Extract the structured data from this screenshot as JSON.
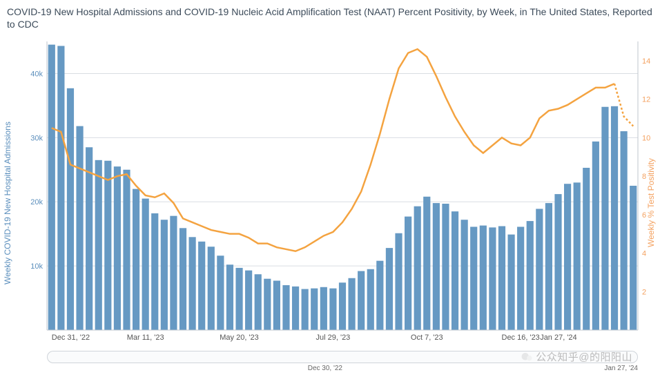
{
  "title": "COVID-19 New Hospital Admissions and COVID-19 Nucleic Acid Amplification Test (NAAT) Percent Positivity, by Week, in The United States, Reported to CDC",
  "chart": {
    "type": "bar+line",
    "background_color": "#ffffff",
    "grid_color": "#d9dde2",
    "bar_color": "#6699c3",
    "line_color": "#f4a340",
    "bar_width_ratio": 0.75,
    "line_width": 2.5,
    "y_left": {
      "label": "Weekly COVID-19 New Hospital Admissions",
      "label_color": "#5a8ebc",
      "label_fontsize": 12,
      "lim": [
        0,
        45000
      ],
      "ticks": [
        10000,
        20000,
        30000,
        40000
      ],
      "tick_labels": [
        "10k",
        "20k",
        "30k",
        "40k"
      ]
    },
    "y_right": {
      "label": "Weekly % Test Positivity",
      "label_color": "#f4a261",
      "label_fontsize": 12,
      "lim": [
        0,
        15
      ],
      "ticks": [
        2,
        4,
        6,
        8,
        10,
        12,
        14
      ],
      "tick_labels": [
        "2",
        "4",
        "6",
        "8",
        "10",
        "12",
        "14"
      ]
    },
    "x": {
      "ticks_idx": [
        0,
        10,
        20,
        30,
        40,
        50,
        56
      ],
      "tick_labels": [
        "Dec 31, '22",
        "Mar 11, '23",
        "May 20, '23",
        "Jul 29, '23",
        "Oct 7, '23",
        "Dec 16, '23",
        "Jan 27, '24"
      ]
    },
    "bars": [
      44500,
      44300,
      37700,
      31800,
      28500,
      26500,
      26400,
      25500,
      25000,
      22000,
      20500,
      18200,
      17200,
      17800,
      15900,
      14500,
      13800,
      13000,
      11600,
      10200,
      9700,
      9300,
      8700,
      8000,
      7700,
      7000,
      6800,
      6400,
      6500,
      6700,
      6500,
      7400,
      8100,
      9200,
      9500,
      10800,
      12800,
      15100,
      17700,
      19300,
      20800,
      19800,
      19700,
      18500,
      17200,
      16100,
      16300,
      16000,
      16200,
      14900,
      16100,
      17000,
      18900,
      19800,
      21200,
      22800,
      23000,
      25300,
      29400,
      34800,
      34900,
      31000,
      22500
    ],
    "positivity": [
      10.5,
      10.3,
      8.6,
      8.4,
      8.2,
      8.0,
      7.8,
      8.0,
      8.1,
      7.5,
      7.0,
      6.9,
      7.1,
      6.6,
      5.8,
      5.6,
      5.4,
      5.2,
      5.1,
      5.0,
      5.0,
      4.8,
      4.5,
      4.5,
      4.3,
      4.2,
      4.1,
      4.3,
      4.6,
      4.9,
      5.1,
      5.6,
      6.3,
      7.2,
      8.6,
      10.2,
      12.0,
      13.6,
      14.4,
      14.6,
      14.2,
      13.2,
      12.1,
      11.1,
      10.3,
      9.6,
      9.2,
      9.6,
      10.0,
      9.7,
      9.6,
      10.0,
      11.0,
      11.4,
      11.5,
      11.7,
      12.0,
      12.3,
      12.6,
      12.6,
      12.8,
      11.1,
      10.6
    ],
    "positivity_dashed_from_index": 60
  },
  "range_slider": {
    "start_label": "Dec 30, '22",
    "end_label": "Jan 27, '24"
  },
  "watermarks": {
    "text_1": "公众知乎",
    "text_2": "@的阳阳山"
  }
}
